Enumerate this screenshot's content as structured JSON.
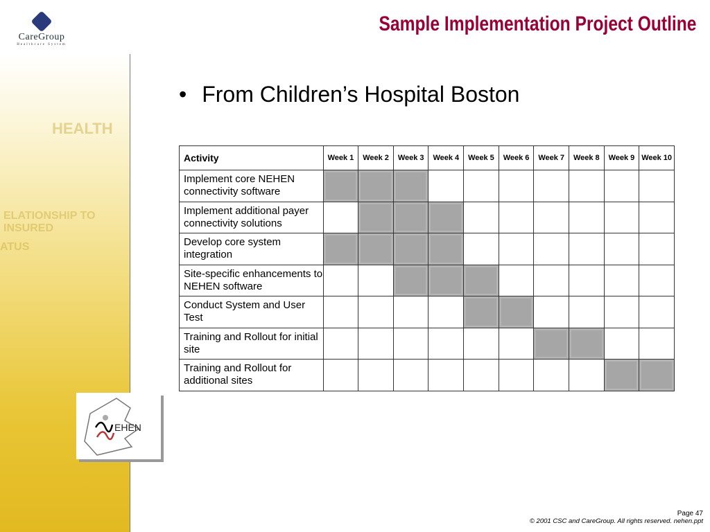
{
  "logo": {
    "name": "CareGroup",
    "subtitle": "Healthcare System"
  },
  "title": "Sample Implementation Project Outline",
  "bullet": "From Children’s Hospital Boston",
  "table": {
    "headers": [
      "Activity",
      "Week 1",
      "Week 2",
      "Week 3",
      "Week 4",
      "Week 5",
      "Week 6",
      "Week 7",
      "Week 8",
      "Week 9",
      "Week 10"
    ],
    "rows": [
      {
        "activity": "Implement core NEHEN connectivity software",
        "weeks": [
          1,
          2,
          3
        ]
      },
      {
        "activity": "Implement additional payer connectivity solutions",
        "weeks": [
          2,
          3,
          4
        ]
      },
      {
        "activity": "Develop core system integration",
        "weeks": [
          1,
          2,
          3,
          4
        ]
      },
      {
        "activity": "Site-specific enhancements to NEHEN software",
        "weeks": [
          3,
          4,
          5
        ]
      },
      {
        "activity": "Conduct System and User Test",
        "weeks": [
          5,
          6
        ]
      },
      {
        "activity": "Training and Rollout for initial site",
        "weeks": [
          7,
          8
        ]
      },
      {
        "activity": "Training and Rollout for additional sites",
        "weeks": [
          9,
          10
        ]
      }
    ]
  },
  "nehen_logo": "NEHEN",
  "footer": {
    "page": "Page 47",
    "copyright": "© 2001 CSC and CareGroup.  All rights reserved.  nehen.ppt"
  },
  "colors": {
    "title": "#990033",
    "bar": "#a6a6a6"
  }
}
